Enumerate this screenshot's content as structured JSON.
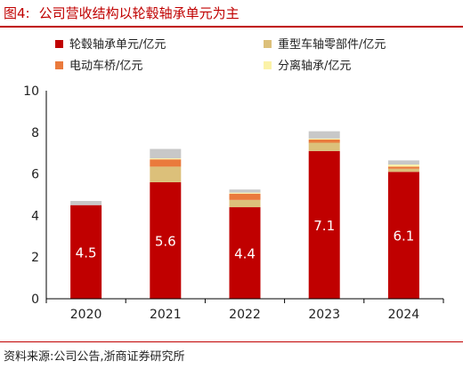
{
  "figure": {
    "number": "图4:",
    "title": "公司营收结构以轮毂轴承单元为主",
    "source": "资料来源:公司公告,浙商证券研究所"
  },
  "chart_data": {
    "type": "bar",
    "stacked": true,
    "categories": [
      "2020",
      "2021",
      "2022",
      "2023",
      "2024"
    ],
    "ylim": [
      0,
      10
    ],
    "yticks": [
      0,
      2,
      4,
      6,
      8,
      10
    ],
    "legend_position": "top",
    "series": [
      {
        "name": "轮毂轴承单元/亿元",
        "color": "#c00000",
        "values": [
          4.5,
          5.6,
          4.4,
          7.1,
          6.1
        ],
        "labels": [
          "4.5",
          "5.6",
          "4.4",
          "7.1",
          "6.1"
        ]
      },
      {
        "name": "重型车轴零部件/亿元",
        "color": "#dcc07a",
        "values": [
          0.0,
          0.75,
          0.35,
          0.4,
          0.15
        ]
      },
      {
        "name": "电动车桥/亿元",
        "color": "#ea7a3c",
        "values": [
          0.0,
          0.35,
          0.3,
          0.15,
          0.1
        ]
      },
      {
        "name": "分离轴承/亿元",
        "color": "#fbf2a8",
        "values": [
          0.0,
          0.05,
          0.05,
          0.05,
          0.1
        ]
      },
      {
        "name": "",
        "color": "#c8c8c8",
        "values": [
          0.2,
          0.45,
          0.15,
          0.35,
          0.2
        ]
      }
    ]
  }
}
